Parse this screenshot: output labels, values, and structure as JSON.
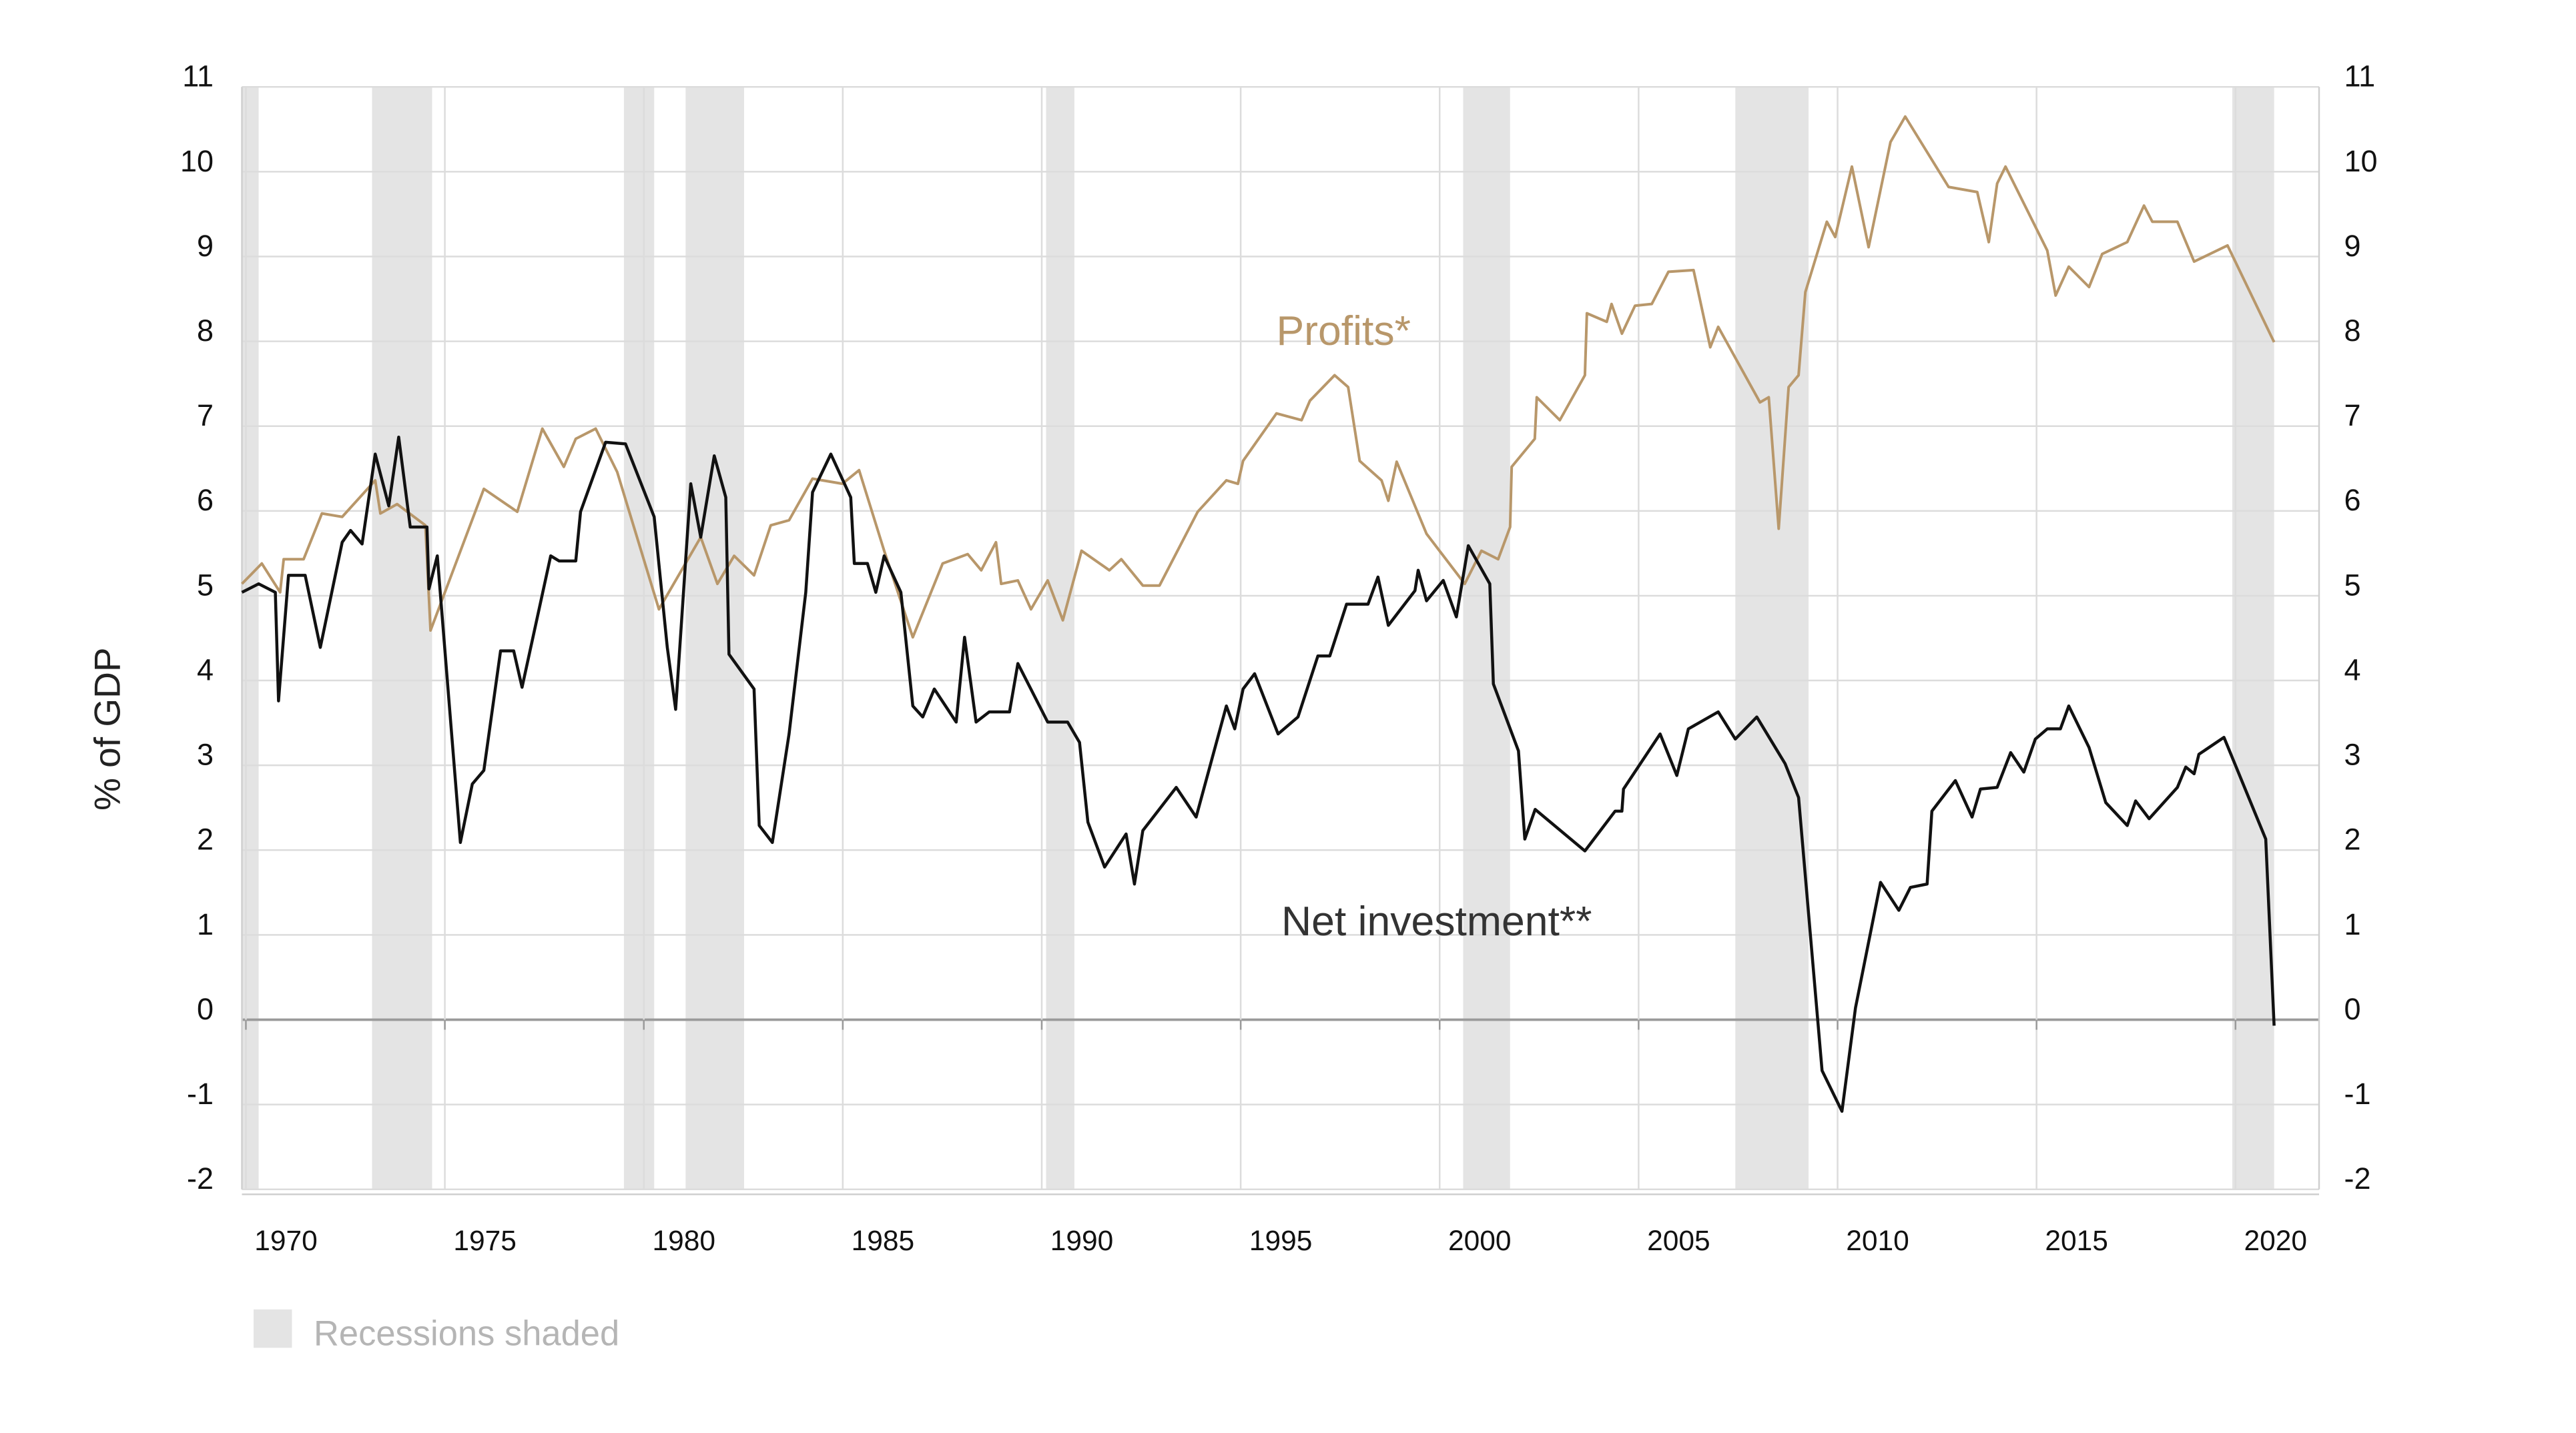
{
  "chart_data": {
    "type": "line",
    "y_label": "% of GDP",
    "recession_label": "Recessions shaded",
    "recession_color": "#e4e4e4",
    "recessions": [
      [
        1969.9,
        1970.32
      ],
      [
        1973.17,
        1974.68
      ],
      [
        1979.5,
        1980.26
      ],
      [
        1981.05,
        1982.52
      ],
      [
        1990.11,
        1990.82
      ],
      [
        2000.59,
        2001.77
      ],
      [
        2007.43,
        2009.27
      ],
      [
        2019.92,
        2020.97
      ]
    ],
    "xlim": [
      1969.9,
      2022.1
    ],
    "xticks": [
      1970,
      1975,
      1980,
      1985,
      1990,
      1995,
      2000,
      2005,
      2010,
      2015,
      2020
    ],
    "ylim": [
      -2,
      11
    ],
    "yticks": [
      -2,
      -1,
      0,
      1,
      2,
      3,
      4,
      5,
      6,
      7,
      8,
      9,
      10,
      11
    ],
    "y2lim": [
      -2,
      11
    ],
    "y2ticks": [
      -2,
      -1,
      0,
      1,
      2,
      3,
      4,
      5,
      6,
      7,
      8,
      9,
      10,
      11
    ],
    "grid": true,
    "series": [
      {
        "name": "Profits*",
        "color": "#b8976a",
        "x": [
          1969.9,
          1970.4,
          1970.86,
          1970.95,
          1971.45,
          1971.91,
          1972.42,
          1973.25,
          1973.38,
          1973.8,
          1974.51,
          1974.64,
          1975.98,
          1976.82,
          1977.45,
          1977.99,
          1978.29,
          1978.79,
          1979.33,
          1980.38,
          1981.43,
          1981.85,
          1982.27,
          1982.77,
          1983.19,
          1983.65,
          1984.24,
          1984.99,
          1985.41,
          1986.04,
          1986.76,
          1987.51,
          1988.14,
          1988.48,
          1988.85,
          1988.98,
          1989.4,
          1989.73,
          1990.15,
          1990.53,
          1991.0,
          1991.7,
          1992.0,
          1992.54,
          1992.96,
          1993.92,
          1994.64,
          1994.93,
          1995.06,
          1995.9,
          1996.53,
          1996.74,
          1997.36,
          1997.7,
          1997.99,
          1998.54,
          1998.71,
          1998.92,
          1999.67,
          2000.63,
          2001.05,
          2001.47,
          2001.77,
          2001.81,
          2002.39,
          2002.44,
          2003.02,
          2003.65,
          2003.7,
          2004.2,
          2004.32,
          2004.58,
          2004.91,
          2005.33,
          2005.75,
          2006.38,
          2006.8,
          2007.0,
          2008.05,
          2008.27,
          2008.52,
          2008.77,
          2009.02,
          2009.19,
          2009.73,
          2009.94,
          2010.36,
          2010.78,
          2011.33,
          2011.7,
          2012.79,
          2013.51,
          2013.8,
          2014.01,
          2014.22,
          2015.27,
          2015.48,
          2015.81,
          2016.32,
          2016.65,
          2017.28,
          2017.7,
          2017.91,
          2018.54,
          2018.96,
          2019.8,
          2020.97
        ],
        "values": [
          5.14,
          5.38,
          5.04,
          5.43,
          5.43,
          5.97,
          5.93,
          6.36,
          5.97,
          6.08,
          5.83,
          4.59,
          6.26,
          5.99,
          6.97,
          6.52,
          6.85,
          6.97,
          6.46,
          4.84,
          5.69,
          5.14,
          5.47,
          5.24,
          5.83,
          5.89,
          6.38,
          6.32,
          6.48,
          5.53,
          4.51,
          5.38,
          5.49,
          5.3,
          5.63,
          5.14,
          5.18,
          4.84,
          5.18,
          4.71,
          5.53,
          5.3,
          5.43,
          5.12,
          5.12,
          5.99,
          6.36,
          6.32,
          6.59,
          7.15,
          7.07,
          7.3,
          7.6,
          7.46,
          6.59,
          6.36,
          6.12,
          6.58,
          5.73,
          5.14,
          5.53,
          5.43,
          5.81,
          6.52,
          6.85,
          7.34,
          7.07,
          7.6,
          8.33,
          8.23,
          8.44,
          8.09,
          8.42,
          8.44,
          8.82,
          8.84,
          7.93,
          8.17,
          7.28,
          7.34,
          5.79,
          7.46,
          7.6,
          8.58,
          9.41,
          9.23,
          10.06,
          9.11,
          10.35,
          10.65,
          9.82,
          9.76,
          9.17,
          9.86,
          10.06,
          9.07,
          8.54,
          8.88,
          8.64,
          9.03,
          9.17,
          9.6,
          9.41,
          9.41,
          8.94,
          9.13,
          7.99
        ]
      },
      {
        "name": "Net investment**",
        "color": "#111111",
        "x": [
          1969.9,
          1970.32,
          1970.74,
          1970.82,
          1971.07,
          1971.49,
          1971.87,
          1972.42,
          1972.63,
          1972.92,
          1973.25,
          1973.59,
          1973.84,
          1974.13,
          1974.55,
          1974.6,
          1974.81,
          1975.39,
          1975.69,
          1975.98,
          1976.4,
          1976.73,
          1976.94,
          1977.66,
          1977.87,
          1978.29,
          1978.41,
          1979.04,
          1979.54,
          1980.26,
          1980.59,
          1980.8,
          1981.18,
          1981.43,
          1981.77,
          1982.06,
          1982.14,
          1982.77,
          1982.9,
          1983.23,
          1983.65,
          1984.07,
          1984.24,
          1984.7,
          1985.2,
          1985.29,
          1985.62,
          1985.83,
          1986.04,
          1986.46,
          1986.76,
          1987.01,
          1987.3,
          1987.85,
          1988.06,
          1988.35,
          1988.68,
          1989.19,
          1989.4,
          1990.15,
          1990.65,
          1990.95,
          1991.16,
          1991.58,
          1992.12,
          1992.33,
          1992.54,
          1993.38,
          1993.88,
          1994.64,
          1994.85,
          1995.06,
          1995.35,
          1995.94,
          1996.44,
          1996.94,
          1997.24,
          1997.66,
          1998.2,
          1998.45,
          1998.71,
          1999.38,
          1999.46,
          1999.67,
          2000.09,
          2000.42,
          2000.72,
          2001.26,
          2001.35,
          2001.98,
          2002.14,
          2002.4,
          2003.65,
          2004.41,
          2004.58,
          2004.62,
          2005.54,
          2005.96,
          2006.25,
          2007.0,
          2007.43,
          2007.97,
          2008.68,
          2009.02,
          2009.61,
          2010.11,
          2010.45,
          2011.08,
          2011.54,
          2011.83,
          2012.25,
          2012.37,
          2012.96,
          2013.38,
          2013.59,
          2014.01,
          2014.35,
          2014.68,
          2014.97,
          2015.27,
          2015.6,
          2015.81,
          2016.32,
          2016.74,
          2017.28,
          2017.49,
          2017.83,
          2018.54,
          2018.75,
          2018.96,
          2019.08,
          2019.71,
          2020.76,
          2020.97
        ],
        "values": [
          5.04,
          5.14,
          5.04,
          3.76,
          5.24,
          5.24,
          4.39,
          5.63,
          5.77,
          5.61,
          6.67,
          6.06,
          6.87,
          5.81,
          5.81,
          5.08,
          5.47,
          2.09,
          2.78,
          2.94,
          4.35,
          4.35,
          3.92,
          5.47,
          5.41,
          5.41,
          5.99,
          6.81,
          6.79,
          5.93,
          4.39,
          3.66,
          6.32,
          5.69,
          6.65,
          6.16,
          4.31,
          3.9,
          2.29,
          2.09,
          3.37,
          5.04,
          6.22,
          6.67,
          6.16,
          5.38,
          5.38,
          5.04,
          5.47,
          5.04,
          3.7,
          3.57,
          3.9,
          3.51,
          4.51,
          3.51,
          3.63,
          3.63,
          4.2,
          3.51,
          3.51,
          3.27,
          2.33,
          1.8,
          2.19,
          1.6,
          2.23,
          2.74,
          2.39,
          3.7,
          3.43,
          3.9,
          4.08,
          3.37,
          3.57,
          4.29,
          4.29,
          4.9,
          4.9,
          5.22,
          4.65,
          5.06,
          5.3,
          4.94,
          5.18,
          4.75,
          5.59,
          5.14,
          3.96,
          3.17,
          2.13,
          2.48,
          1.99,
          2.46,
          2.46,
          2.72,
          3.37,
          2.88,
          3.43,
          3.63,
          3.31,
          3.57,
          3.02,
          2.62,
          -0.6,
          -1.08,
          0.14,
          1.62,
          1.29,
          1.56,
          1.6,
          2.46,
          2.82,
          2.39,
          2.72,
          2.74,
          3.15,
          2.92,
          3.31,
          3.43,
          3.43,
          3.7,
          3.21,
          2.56,
          2.29,
          2.58,
          2.37,
          2.74,
          2.98,
          2.9,
          3.13,
          3.33,
          2.13,
          -0.07
        ]
      }
    ]
  }
}
